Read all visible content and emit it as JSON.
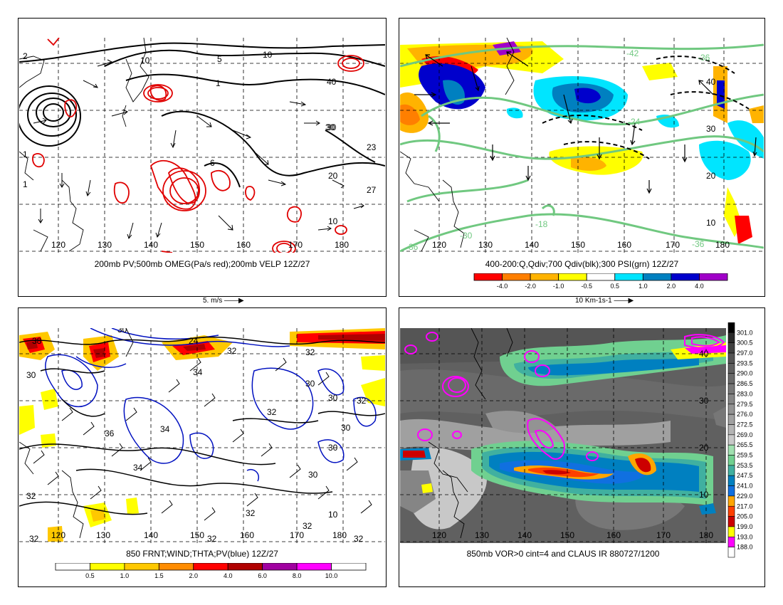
{
  "panels": [
    {
      "caption": "200mb PV;500mb OMEG(Pa/s red);200mb VELP 12Z/27",
      "ref_vector": "5. m/s",
      "lon_labels": [
        "120",
        "130",
        "140",
        "150",
        "160",
        "170",
        "180"
      ],
      "lat_labels": [
        "40",
        "30",
        "20",
        "10"
      ],
      "contour_labels": [
        "2",
        "10",
        "5",
        "10",
        "1",
        "30",
        "23",
        "20",
        "27",
        "10",
        "1",
        "1",
        "6"
      ]
    },
    {
      "caption": "400-200:Q,Qdiv;700 Qdiv(blk);300 PSI(grn) 12Z/27",
      "ref_vector": "10 Km-1s-1",
      "lon_labels": [
        "120",
        "130",
        "140",
        "150",
        "160",
        "170",
        "180"
      ],
      "lat_labels": [
        "40",
        "30",
        "20",
        "10"
      ],
      "contour_labels": [
        "-42",
        "-36",
        "-24",
        "-18",
        "-30",
        "-36",
        "-36"
      ],
      "colorbar": {
        "labels": [
          "-4.0",
          "-2.0",
          "-1.0",
          "-0.5",
          "0.5",
          "1.0",
          "2.0",
          "4.0"
        ],
        "colors": [
          "#ff0000",
          "#ff7f00",
          "#ffb300",
          "#ffff00",
          "#ffffff",
          "#00e5ff",
          "#0080c0",
          "#0000cc",
          "#a000c8"
        ]
      }
    },
    {
      "caption": "850 FRNT;WIND;THTA;PV(blue) 12Z/27",
      "lon_labels": [
        "120",
        "130",
        "140",
        "150",
        "160",
        "170",
        "180"
      ],
      "contour_labels": [
        "30",
        "38",
        "24",
        "32",
        "30",
        "30",
        "34",
        "32",
        "36",
        "34",
        "32",
        "30",
        "30",
        "34",
        "32",
        "30",
        "10",
        "32",
        "30",
        "32",
        "32",
        "32",
        "32",
        "32"
      ],
      "colorbar": {
        "labels": [
          "0.5",
          "1.0",
          "1.5",
          "2.0",
          "4.0",
          "6.0",
          "8.0",
          "10.0"
        ],
        "colors": [
          "#ffffff",
          "#ffff00",
          "#ffc800",
          "#ff8c00",
          "#ff0000",
          "#b00000",
          "#a000a0",
          "#ff00ff",
          "#ffffff"
        ]
      }
    },
    {
      "caption": "850mb VOR>0 cint=4 and CLAUS IR 880727/1200",
      "lon_labels": [
        "120",
        "130",
        "140",
        "150",
        "160",
        "170",
        "180"
      ],
      "lat_labels": [
        "40",
        "30",
        "20",
        "10"
      ],
      "colorbar": {
        "labels": [
          "301.0",
          "300.5",
          "297.0",
          "293.5",
          "290.0",
          "286.5",
          "283.0",
          "279.5",
          "276.0",
          "272.5",
          "269.0",
          "265.5",
          "259.5",
          "253.5",
          "247.5",
          "241.0",
          "229.0",
          "217.0",
          "205.0",
          "199.0",
          "193.0",
          "188.0"
        ],
        "colors": [
          "#000000",
          "#2a2a2a",
          "#404040",
          "#555555",
          "#606060",
          "#6a6a6a",
          "#777777",
          "#858585",
          "#939393",
          "#a0a0a0",
          "#b4b4b4",
          "#c8c8c8",
          "#a0e0b0",
          "#70d090",
          "#40b0a0",
          "#0080c0",
          "#1070e0",
          "#ffa500",
          "#ff4000",
          "#cc0000",
          "#ffff00",
          "#ff00ff",
          "#ffffff"
        ]
      }
    }
  ]
}
